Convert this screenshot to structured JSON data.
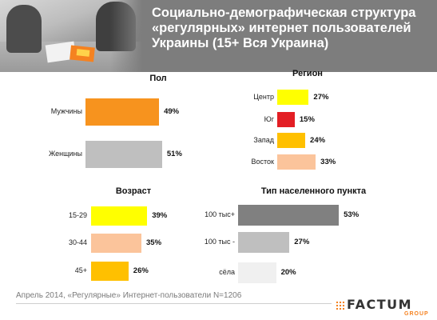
{
  "header": {
    "title": "Социально-демографическая структура «регулярных» интернет пользователей Украины (15+ Вся Украина)"
  },
  "footer": {
    "note": "Апрель 2014, «Регулярные» Интернет-пользователи N=1206"
  },
  "logo": {
    "word": "FACTUM",
    "sub": "GROUP"
  },
  "colors": {
    "orange": "#f7931e",
    "gray": "#bfbfbf",
    "yellow": "#ffff00",
    "red": "#e31e24",
    "gold": "#ffc000",
    "peach": "#fbc49b",
    "dark_gray": "#808080",
    "light_gray": "#f0f0f0"
  },
  "chart_data": [
    {
      "type": "bar",
      "title": "Пол",
      "categories": [
        "Мужчины",
        "Женщины"
      ],
      "values": [
        49,
        51
      ],
      "value_labels": [
        "49%",
        "51%"
      ],
      "colors": [
        "#f7931e",
        "#bfbfbf"
      ]
    },
    {
      "type": "bar",
      "title": "Регион",
      "categories": [
        "Центр",
        "Юг",
        "Запад",
        "Восток"
      ],
      "values": [
        27,
        15,
        24,
        33
      ],
      "value_labels": [
        "27%",
        "15%",
        "24%",
        "33%"
      ],
      "colors": [
        "#ffff00",
        "#e31e24",
        "#ffc000",
        "#fbc49b"
      ]
    },
    {
      "type": "bar",
      "title": "Возраст",
      "categories": [
        "15-29",
        "30-44",
        "45+"
      ],
      "values": [
        39,
        35,
        26
      ],
      "value_labels": [
        "39%",
        "35%",
        "26%"
      ],
      "colors": [
        "#ffff00",
        "#fbc49b",
        "#ffc000"
      ]
    },
    {
      "type": "bar",
      "title": "Тип населенного пункта",
      "categories": [
        "100 тыс+",
        "100 тыс -",
        "сёла"
      ],
      "values": [
        53,
        27,
        20
      ],
      "value_labels": [
        "53%",
        "27%",
        "20%"
      ],
      "colors": [
        "#808080",
        "#bfbfbf",
        "#f0f0f0"
      ]
    }
  ]
}
